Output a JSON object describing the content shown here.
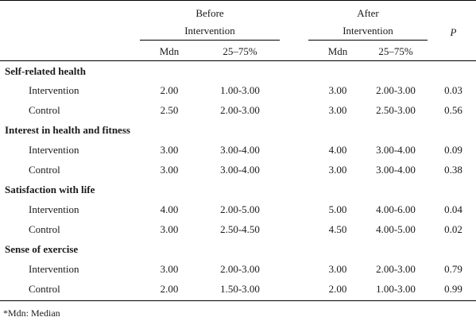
{
  "header": {
    "before_line1": "Before",
    "before_line2": "Intervention",
    "after_line1": "After",
    "after_line2": "Intervention",
    "p": "P",
    "mdn": "Mdn",
    "iqr": "25–75%"
  },
  "sections": [
    {
      "title": "Self-related health",
      "rows": [
        {
          "group": "Intervention",
          "before_mdn": "2.00",
          "before_iqr": "1.00-3.00",
          "after_mdn": "3.00",
          "after_iqr": "2.00-3.00",
          "p": "0.03"
        },
        {
          "group": "Control",
          "before_mdn": "2.50",
          "before_iqr": "2.00-3.00",
          "after_mdn": "3.00",
          "after_iqr": "2.50-3.00",
          "p": "0.56"
        }
      ]
    },
    {
      "title": "Interest in health and fitness",
      "rows": [
        {
          "group": "Intervention",
          "before_mdn": "3.00",
          "before_iqr": "3.00-4.00",
          "after_mdn": "4.00",
          "after_iqr": "3.00-4.00",
          "p": "0.09"
        },
        {
          "group": "Control",
          "before_mdn": "3.00",
          "before_iqr": "3.00-4.00",
          "after_mdn": "3.00",
          "after_iqr": "3.00-4.00",
          "p": "0.38"
        }
      ]
    },
    {
      "title": "Satisfaction with life",
      "rows": [
        {
          "group": "Intervention",
          "before_mdn": "4.00",
          "before_iqr": "2.00-5.00",
          "after_mdn": "5.00",
          "after_iqr": "4.00-6.00",
          "p": "0.04"
        },
        {
          "group": "Control",
          "before_mdn": "3.00",
          "before_iqr": "2.50-4.50",
          "after_mdn": "4.50",
          "after_iqr": "4.00-5.00",
          "p": "0.02"
        }
      ]
    },
    {
      "title": "Sense of exercise",
      "rows": [
        {
          "group": "Intervention",
          "before_mdn": "3.00",
          "before_iqr": "2.00-3.00",
          "after_mdn": "3.00",
          "after_iqr": "2.00-3.00",
          "p": "0.79"
        },
        {
          "group": "Control",
          "before_mdn": "2.00",
          "before_iqr": "1.50-3.00",
          "after_mdn": "2.00",
          "after_iqr": "1.00-3.00",
          "p": "0.99"
        }
      ]
    }
  ],
  "footnote": "*Mdn: Median"
}
